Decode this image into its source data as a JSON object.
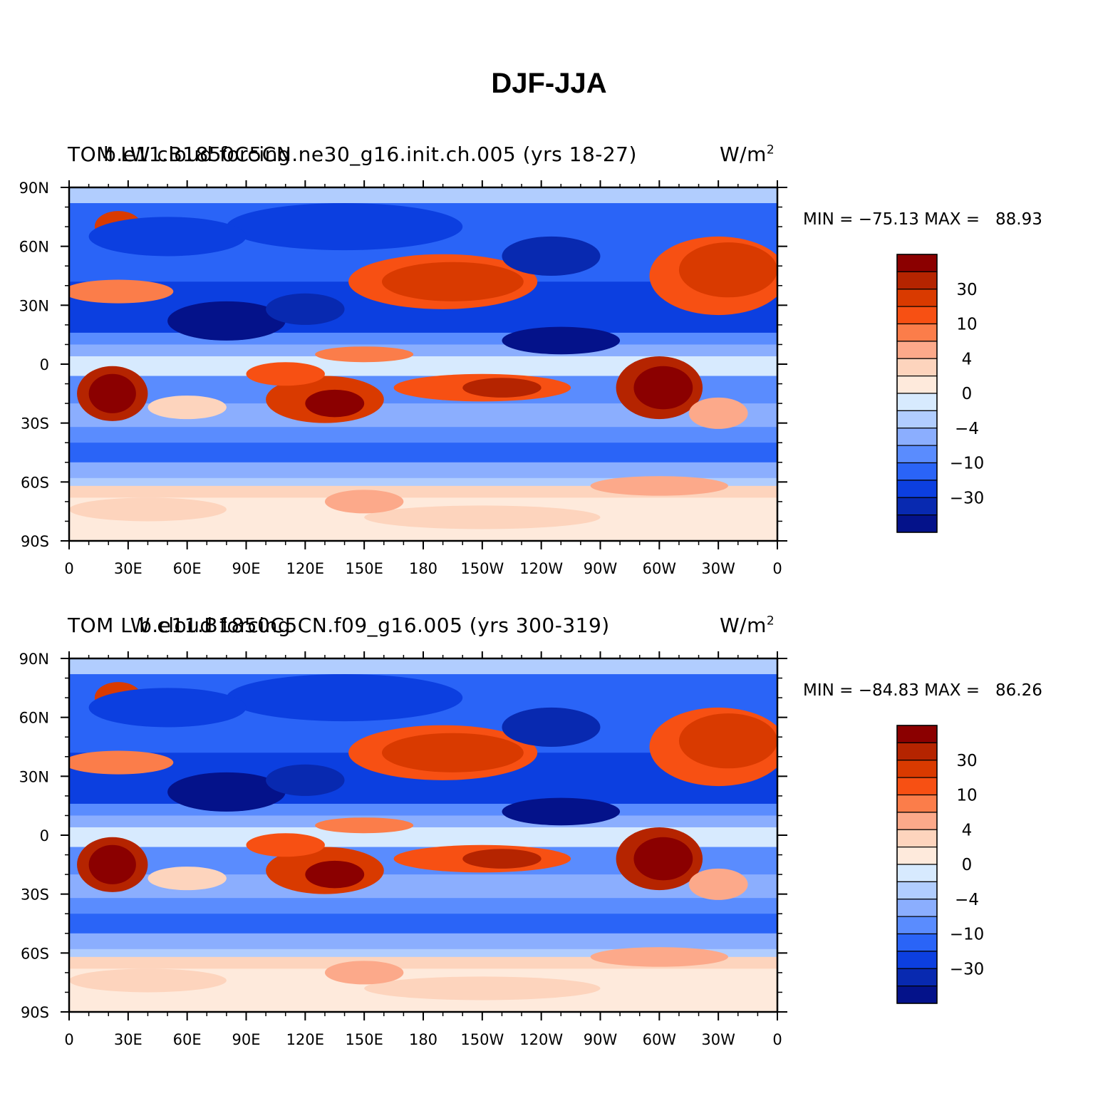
{
  "title": "DJF-JJA",
  "panels": [
    {
      "left_label": "TOM LW cloud forcing",
      "center_label": "b.e11.B1850C5CN.ne30_g16.init.ch.005 (yrs 18-27)",
      "units_label": "W/m",
      "units_sup": "2",
      "min_label": "MIN = −75.13",
      "max_label": "MAX =   88.93"
    },
    {
      "left_label": "TOM LW cloud forcing",
      "center_label": "b.e11.B1850C5CN.f09_g16.005 (yrs 300-319)",
      "units_label": "W/m",
      "units_sup": "2",
      "min_label": "MIN = −84.83",
      "max_label": "MAX =   86.26"
    }
  ],
  "lat_labels": [
    "90N",
    "60N",
    "30N",
    "0",
    "30S",
    "60S",
    "90S"
  ],
  "lon_labels": [
    "0",
    "30E",
    "60E",
    "90E",
    "120E",
    "150E",
    "180",
    "150W",
    "120W",
    "90W",
    "60W",
    "30W",
    "0"
  ],
  "colorbar": {
    "labels": [
      "30",
      "10",
      "4",
      "0",
      "−4",
      "−10",
      "−30"
    ],
    "colors": [
      "#8b0000",
      "#b52400",
      "#d93a00",
      "#f75013",
      "#fb7d4a",
      "#fca98a",
      "#fdd4bd",
      "#feeadc",
      "#d7eafe",
      "#b1cdfe",
      "#8baefe",
      "#5a8cfe",
      "#2a64f7",
      "#0c3fe0",
      "#0829b0",
      "#04128a"
    ]
  }
}
